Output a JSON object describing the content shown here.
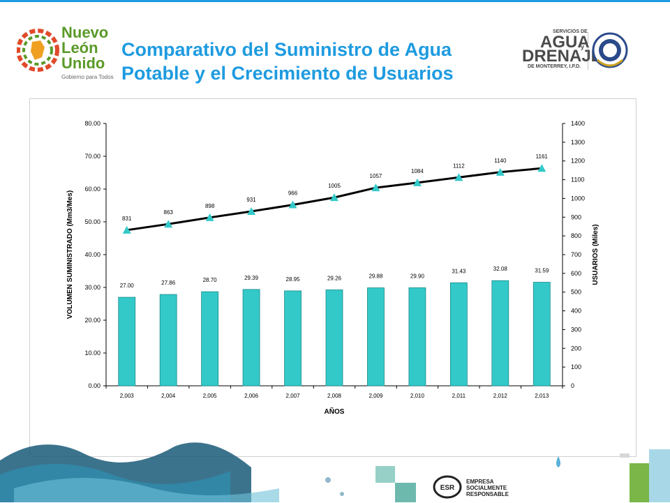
{
  "header": {
    "title_line1": "Comparativo del Suministro de Agua",
    "title_line2": "Potable y el Crecimiento de Usuarios",
    "left_logo": {
      "line1": "Nuevo",
      "line2": "León",
      "line3": "Unido",
      "tagline": "Gobierno para Todos"
    },
    "right_logo": {
      "sub_top": "SERVICIOS DE",
      "word1": "AGUA",
      "word_y": "y",
      "word2": "DRENAJE",
      "sub_bottom": "DE MONTERREY, I.P.D."
    }
  },
  "footer": {
    "esr_mark": "ESR",
    "esr_line1": "EMPRESA",
    "esr_line2": "SOCIALMENTE",
    "esr_line3": "RESPONSABLE"
  },
  "colors": {
    "accent": "#1e9be0",
    "bars": "#33c9c9",
    "line": "#000000",
    "markers": "#33c9c9",
    "green": "#5a9a28"
  },
  "chart_data": {
    "type": "bar",
    "categories": [
      "2,003",
      "2,004",
      "2,005",
      "2,006",
      "2,007",
      "2,008",
      "2,009",
      "2,010",
      "2,011",
      "2,012",
      "2,013"
    ],
    "series": [
      {
        "axis": "left",
        "type": "bar",
        "values": [
          27.0,
          27.86,
          28.7,
          29.39,
          28.95,
          29.26,
          29.88,
          29.9,
          31.43,
          32.08,
          31.59
        ],
        "labels": [
          "27.00",
          "27.86",
          "28.70",
          "29.39",
          "28.95",
          "29.26",
          "29.88",
          "29.90",
          "31.43",
          "32.08",
          "31.59"
        ]
      },
      {
        "axis": "right",
        "type": "line",
        "values": [
          831,
          863,
          898,
          931,
          966,
          1005,
          1057,
          1084,
          1112,
          1140,
          1161
        ],
        "labels": [
          "831",
          "863",
          "898",
          "931",
          "966",
          "1005",
          "1057",
          "1084",
          "1112",
          "1140",
          "1161"
        ]
      }
    ],
    "xlabel": "AÑOS",
    "ylabel": "VOLUMEN SUMINISTRADO (Mm3/Mes)",
    "y2label": "USUARIOS (Miles)",
    "ylim": [
      0,
      80
    ],
    "y2lim": [
      0,
      1400
    ],
    "yticks": [
      "0.00",
      "10.00",
      "20.00",
      "30.00",
      "40.00",
      "50.00",
      "60.00",
      "70.00",
      "80.00"
    ],
    "y2ticks": [
      "0",
      "100",
      "200",
      "300",
      "400",
      "500",
      "600",
      "700",
      "800",
      "900",
      "1000",
      "1100",
      "1200",
      "1300",
      "1400"
    ],
    "grid": false,
    "legend": "none"
  }
}
